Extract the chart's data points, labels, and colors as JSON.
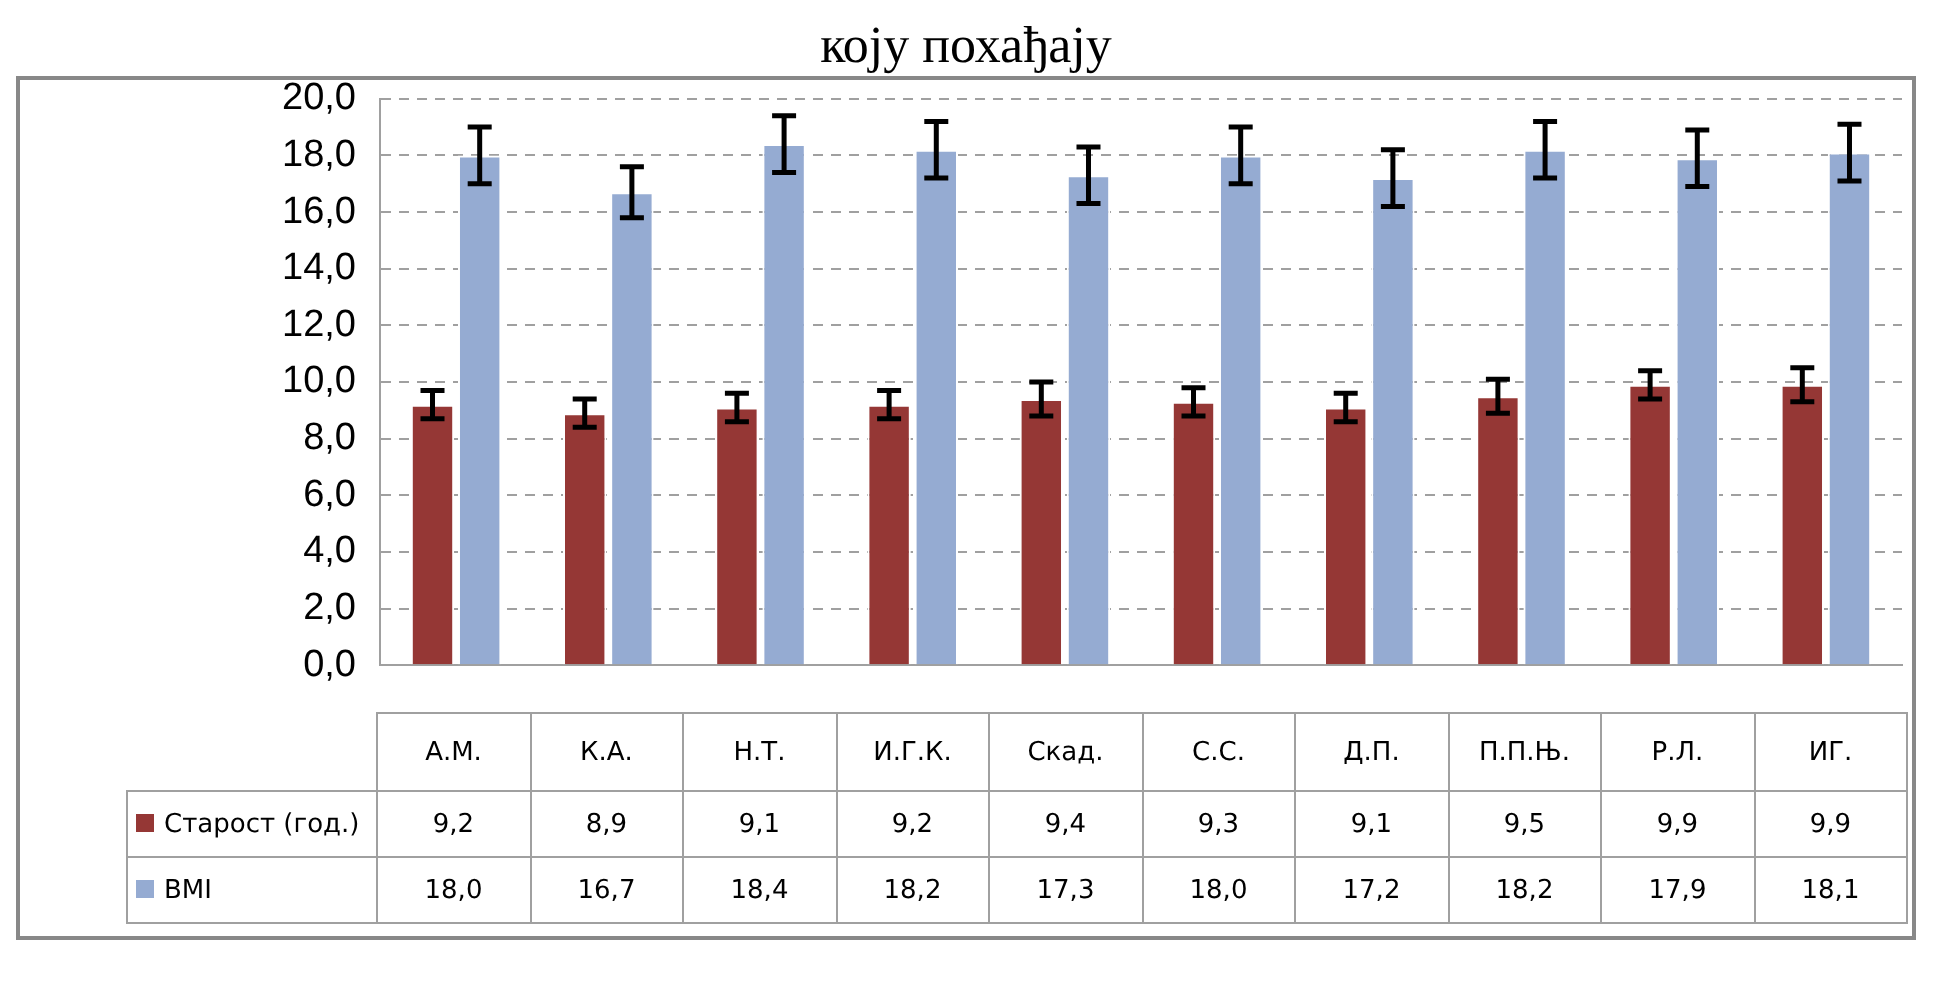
{
  "chart_data": {
    "type": "bar",
    "title": "коју похађају",
    "categories": [
      "А.М.",
      "К.А.",
      "Н.Т.",
      "И.Г.К.",
      "Скад.",
      "С.С.",
      "Д.П.",
      "П.П.Њ.",
      "Р.Л.",
      "ИГ."
    ],
    "series": [
      {
        "name": "Старост (год.)",
        "color": "#953735",
        "values": [
          9.2,
          8.9,
          9.1,
          9.2,
          9.4,
          9.3,
          9.1,
          9.5,
          9.9,
          9.9
        ],
        "errors": [
          0.5,
          0.5,
          0.5,
          0.5,
          0.6,
          0.5,
          0.5,
          0.6,
          0.5,
          0.6
        ],
        "value_labels": [
          "9,2",
          "8,9",
          "9,1",
          "9,2",
          "9,4",
          "9,3",
          "9,1",
          "9,5",
          "9,9",
          "9,9"
        ]
      },
      {
        "name": "BMI",
        "color": "#95abd2",
        "values": [
          18.0,
          16.7,
          18.4,
          18.2,
          17.3,
          18.0,
          17.2,
          18.2,
          17.9,
          18.1
        ],
        "errors": [
          1.0,
          0.9,
          1.0,
          1.0,
          1.0,
          1.0,
          1.0,
          1.0,
          1.0,
          1.0
        ],
        "value_labels": [
          "18,0",
          "16,7",
          "18,4",
          "18,2",
          "17,3",
          "18,0",
          "17,2",
          "18,2",
          "17,9",
          "18,1"
        ]
      }
    ],
    "ylim": [
      0,
      20
    ],
    "yticks": [
      {
        "value": 0,
        "label": "0,0"
      },
      {
        "value": 2,
        "label": "2,0"
      },
      {
        "value": 4,
        "label": "4,0"
      },
      {
        "value": 6,
        "label": "6,0"
      },
      {
        "value": 8,
        "label": "8,0"
      },
      {
        "value": 10,
        "label": "10,0"
      },
      {
        "value": 12,
        "label": "12,0"
      },
      {
        "value": 14,
        "label": "14,0"
      },
      {
        "value": 16,
        "label": "16,0"
      },
      {
        "value": 18,
        "label": "18,0"
      },
      {
        "value": 20,
        "label": "20,0"
      }
    ],
    "grid": "y",
    "legend": "bottom"
  }
}
